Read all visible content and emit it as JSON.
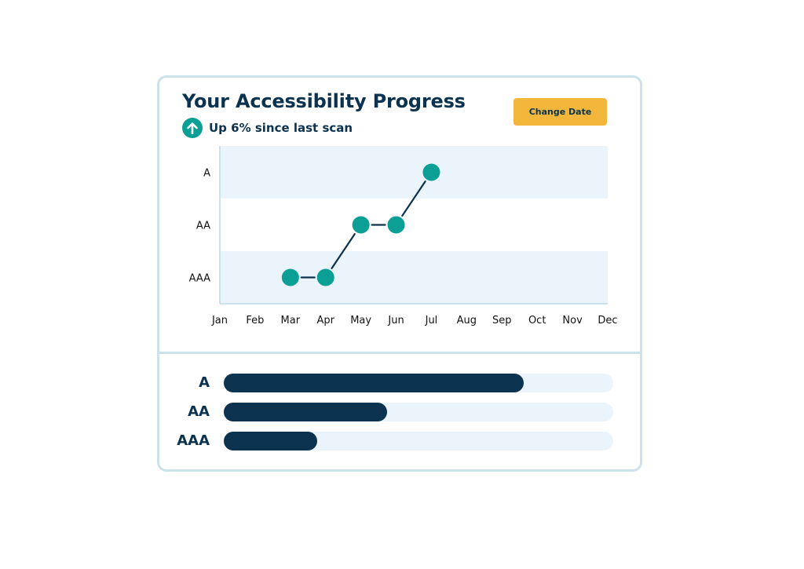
{
  "card": {
    "title": "Your Accessibility Progress",
    "subtitle": "Up 6% since last scan",
    "subtitle_icon": "arrow-up-icon",
    "change_date_label": "Change Date"
  },
  "colors": {
    "navy": "#0b3350",
    "teal": "#0c9f96",
    "band": "#eaf4fa",
    "button": "#f2b63a",
    "border": "#cbe2ea"
  },
  "chart_data": [
    {
      "type": "line",
      "x": [
        "Jan",
        "Feb",
        "Mar",
        "Apr",
        "May",
        "Jun",
        "Jul",
        "Aug",
        "Sep",
        "Oct",
        "Nov",
        "Dec"
      ],
      "y_categories": [
        "AAA",
        "AA",
        "A"
      ],
      "points": [
        {
          "x": "Mar",
          "y": "AAA"
        },
        {
          "x": "Apr",
          "y": "AAA"
        },
        {
          "x": "May",
          "y": "AA"
        },
        {
          "x": "Jun",
          "y": "AA"
        },
        {
          "x": "Jul",
          "y": "A"
        }
      ],
      "grid": false
    },
    {
      "type": "bar",
      "orientation": "horizontal",
      "categories": [
        "A",
        "AA",
        "AAA"
      ],
      "values": [
        0.77,
        0.42,
        0.24
      ]
    }
  ]
}
